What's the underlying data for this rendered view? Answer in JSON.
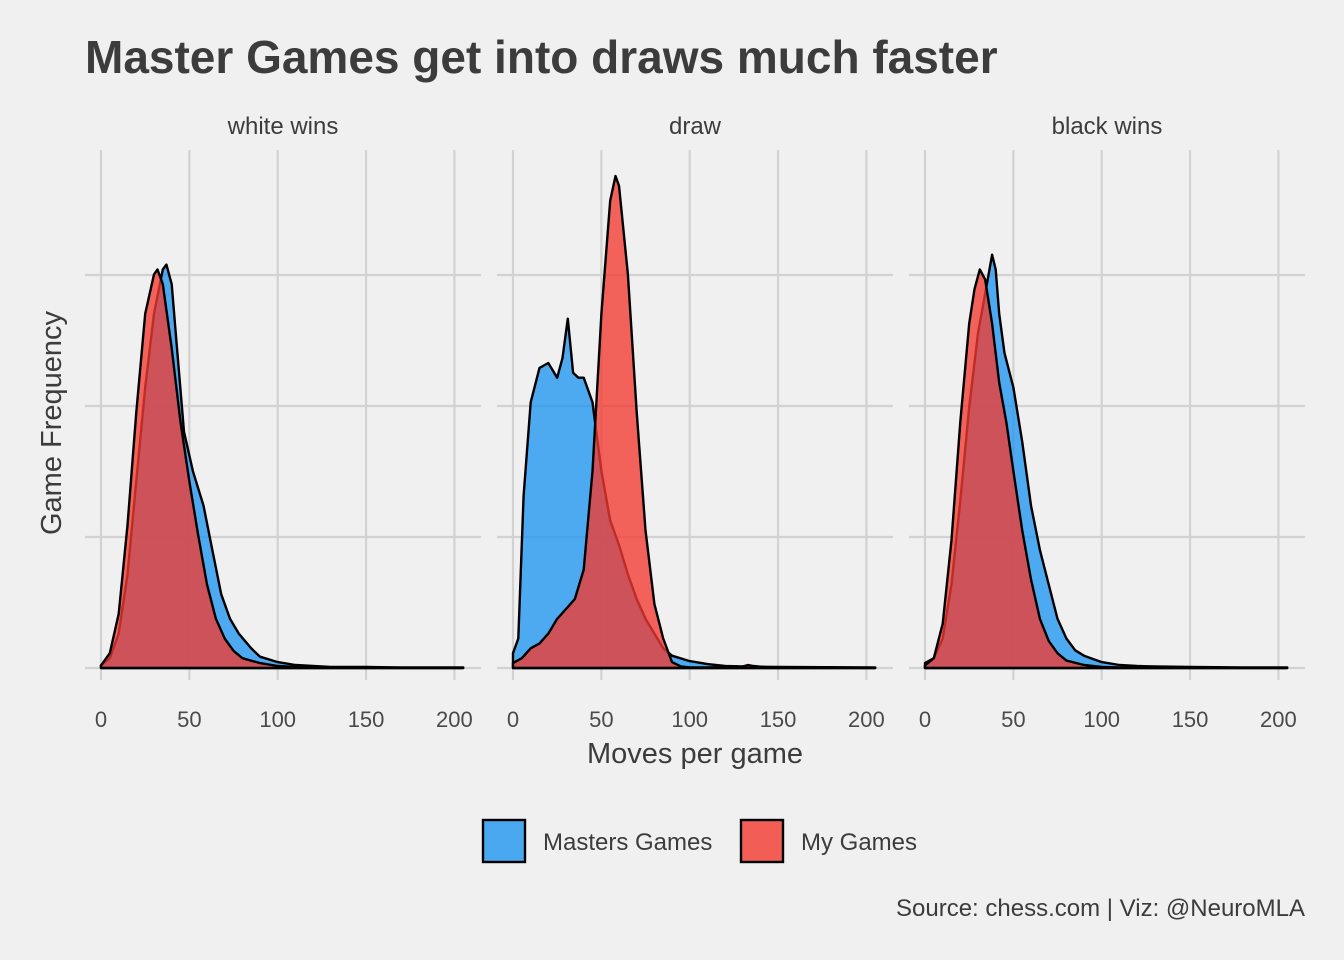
{
  "chart_data": {
    "type": "area",
    "title": "Master Games get into draws much faster",
    "xlabel": "Moves per game",
    "ylabel": "Game Frequency",
    "caption": "Source: chess.com | Viz: @NeuroMLA",
    "xlim": [
      0,
      205
    ],
    "ylim": [
      0,
      1.0
    ],
    "xticks": [
      0,
      50,
      100,
      150,
      200
    ],
    "legend_position": "bottom",
    "grid": true,
    "colors": {
      "Masters Games": "#1f96f0",
      "My Games": "#f23a30"
    },
    "series_order": [
      "Masters Games",
      "My Games"
    ],
    "facets": [
      {
        "label": "white wins",
        "series": [
          {
            "name": "Masters Games",
            "points": [
              [
                0,
                0.005
              ],
              [
                5,
                0.02
              ],
              [
                10,
                0.07
              ],
              [
                15,
                0.19
              ],
              [
                20,
                0.38
              ],
              [
                25,
                0.57
              ],
              [
                30,
                0.72
              ],
              [
                35,
                0.81
              ],
              [
                37,
                0.82
              ],
              [
                40,
                0.78
              ],
              [
                43,
                0.65
              ],
              [
                47,
                0.48
              ],
              [
                52,
                0.4
              ],
              [
                58,
                0.33
              ],
              [
                63,
                0.24
              ],
              [
                68,
                0.15
              ],
              [
                73,
                0.1
              ],
              [
                78,
                0.07
              ],
              [
                85,
                0.04
              ],
              [
                90,
                0.023
              ],
              [
                100,
                0.012
              ],
              [
                110,
                0.006
              ],
              [
                120,
                0.004
              ],
              [
                130,
                0.002
              ],
              [
                150,
                0.002
              ],
              [
                170,
                0.001
              ],
              [
                190,
                0.001
              ],
              [
                205,
                0.001
              ]
            ]
          },
          {
            "name": "My Games",
            "points": [
              [
                0,
                0.005
              ],
              [
                5,
                0.03
              ],
              [
                10,
                0.11
              ],
              [
                15,
                0.29
              ],
              [
                20,
                0.52
              ],
              [
                25,
                0.72
              ],
              [
                30,
                0.8
              ],
              [
                32,
                0.81
              ],
              [
                35,
                0.78
              ],
              [
                40,
                0.65
              ],
              [
                45,
                0.5
              ],
              [
                50,
                0.38
              ],
              [
                55,
                0.27
              ],
              [
                60,
                0.17
              ],
              [
                65,
                0.1
              ],
              [
                70,
                0.06
              ],
              [
                75,
                0.035
              ],
              [
                80,
                0.02
              ],
              [
                90,
                0.01
              ],
              [
                100,
                0.004
              ],
              [
                110,
                0.002
              ],
              [
                120,
                0.001
              ],
              [
                205,
                0.0
              ]
            ]
          }
        ]
      },
      {
        "label": "draw",
        "series": [
          {
            "name": "Masters Games",
            "points": [
              [
                0,
                0.03
              ],
              [
                3,
                0.06
              ],
              [
                6,
                0.35
              ],
              [
                10,
                0.54
              ],
              [
                15,
                0.61
              ],
              [
                20,
                0.62
              ],
              [
                25,
                0.59
              ],
              [
                28,
                0.63
              ],
              [
                31,
                0.71
              ],
              [
                34,
                0.6
              ],
              [
                37,
                0.59
              ],
              [
                40,
                0.59
              ],
              [
                45,
                0.54
              ],
              [
                50,
                0.4
              ],
              [
                55,
                0.3
              ],
              [
                60,
                0.25
              ],
              [
                65,
                0.19
              ],
              [
                70,
                0.14
              ],
              [
                75,
                0.1
              ],
              [
                80,
                0.07
              ],
              [
                85,
                0.04
              ],
              [
                90,
                0.025
              ],
              [
                100,
                0.014
              ],
              [
                110,
                0.008
              ],
              [
                120,
                0.004
              ],
              [
                130,
                0.003
              ],
              [
                150,
                0.002
              ],
              [
                205,
                0.001
              ]
            ]
          },
          {
            "name": "My Games",
            "points": [
              [
                0,
                0.01
              ],
              [
                5,
                0.02
              ],
              [
                10,
                0.04
              ],
              [
                15,
                0.05
              ],
              [
                20,
                0.07
              ],
              [
                25,
                0.1
              ],
              [
                30,
                0.12
              ],
              [
                35,
                0.14
              ],
              [
                40,
                0.2
              ],
              [
                45,
                0.4
              ],
              [
                50,
                0.72
              ],
              [
                55,
                0.95
              ],
              [
                58,
                1.0
              ],
              [
                60,
                0.98
              ],
              [
                65,
                0.8
              ],
              [
                70,
                0.52
              ],
              [
                75,
                0.28
              ],
              [
                80,
                0.13
              ],
              [
                85,
                0.06
              ],
              [
                90,
                0.012
              ],
              [
                95,
                0.003
              ],
              [
                100,
                0.001
              ],
              [
                110,
                0.001
              ],
              [
                120,
                0.002
              ],
              [
                128,
                0.001
              ],
              [
                133,
                0.006
              ],
              [
                136,
                0.004
              ],
              [
                145,
                0.001
              ],
              [
                205,
                0.0
              ]
            ]
          }
        ]
      },
      {
        "label": "black wins",
        "series": [
          {
            "name": "Masters Games",
            "points": [
              [
                0,
                0.01
              ],
              [
                5,
                0.02
              ],
              [
                10,
                0.06
              ],
              [
                15,
                0.17
              ],
              [
                20,
                0.34
              ],
              [
                25,
                0.53
              ],
              [
                30,
                0.68
              ],
              [
                33,
                0.74
              ],
              [
                36,
                0.8
              ],
              [
                38,
                0.84
              ],
              [
                40,
                0.81
              ],
              [
                42,
                0.72
              ],
              [
                45,
                0.64
              ],
              [
                50,
                0.57
              ],
              [
                55,
                0.46
              ],
              [
                60,
                0.33
              ],
              [
                65,
                0.24
              ],
              [
                70,
                0.17
              ],
              [
                75,
                0.1
              ],
              [
                80,
                0.06
              ],
              [
                85,
                0.036
              ],
              [
                90,
                0.025
              ],
              [
                100,
                0.012
              ],
              [
                110,
                0.006
              ],
              [
                120,
                0.004
              ],
              [
                130,
                0.003
              ],
              [
                150,
                0.002
              ],
              [
                180,
                0.001
              ],
              [
                205,
                0.001
              ]
            ]
          },
          {
            "name": "My Games",
            "points": [
              [
                0,
                0.005
              ],
              [
                5,
                0.02
              ],
              [
                10,
                0.09
              ],
              [
                15,
                0.26
              ],
              [
                20,
                0.5
              ],
              [
                25,
                0.7
              ],
              [
                28,
                0.77
              ],
              [
                31,
                0.81
              ],
              [
                34,
                0.79
              ],
              [
                38,
                0.7
              ],
              [
                42,
                0.58
              ],
              [
                46,
                0.5
              ],
              [
                50,
                0.4
              ],
              [
                55,
                0.28
              ],
              [
                60,
                0.18
              ],
              [
                65,
                0.1
              ],
              [
                70,
                0.055
              ],
              [
                75,
                0.03
              ],
              [
                80,
                0.015
              ],
              [
                90,
                0.006
              ],
              [
                100,
                0.002
              ],
              [
                110,
                0.001
              ],
              [
                205,
                0.0
              ]
            ]
          }
        ]
      }
    ]
  }
}
